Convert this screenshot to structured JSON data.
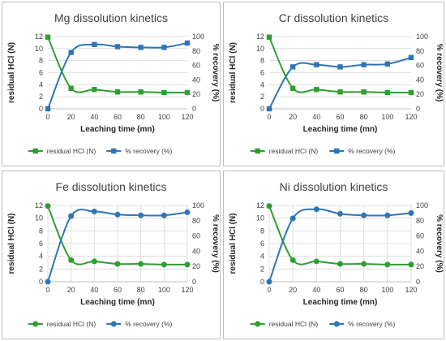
{
  "chart_data": [
    {
      "type": "line",
      "title": "Mg dissolution kinetics",
      "xlabel": "Leaching time (mn)",
      "ylabel": "residual HCl (N)",
      "y2label": "% recovery (%)",
      "x": [
        0,
        20,
        40,
        60,
        80,
        100,
        120
      ],
      "xlim": [
        0,
        120
      ],
      "ylim": [
        0,
        12
      ],
      "y2lim": [
        0,
        100
      ],
      "marker": "square",
      "series": [
        {
          "name": "residual HCl (N)",
          "axis": "left",
          "color": "#2e9e2e",
          "values": [
            11.9,
            3.4,
            3.2,
            2.8,
            2.8,
            2.7,
            2.7
          ]
        },
        {
          "name": "% recovery (%)",
          "axis": "right",
          "color": "#2e75b6",
          "values": [
            0,
            78,
            89,
            86,
            85,
            85,
            91
          ]
        }
      ],
      "legend": "bottom",
      "grid": "horizontal"
    },
    {
      "type": "line",
      "title": "Cr dissolution kinetics",
      "xlabel": "Leaching time (mn)",
      "ylabel": "residual HCl (N)",
      "y2label": "% recovery (%)",
      "x": [
        0,
        20,
        40,
        60,
        80,
        100,
        120
      ],
      "xlim": [
        0,
        120
      ],
      "ylim": [
        0,
        12
      ],
      "y2lim": [
        0,
        100
      ],
      "marker": "square",
      "series": [
        {
          "name": "residual HCl (N)",
          "axis": "left",
          "color": "#2e9e2e",
          "values": [
            11.9,
            3.4,
            3.2,
            2.8,
            2.8,
            2.7,
            2.7
          ]
        },
        {
          "name": "% recovery (%)",
          "axis": "right",
          "color": "#2e75b6",
          "values": [
            0,
            58,
            61,
            58,
            61,
            62,
            71
          ]
        }
      ],
      "legend": "bottom",
      "grid": "horizontal"
    },
    {
      "type": "line",
      "title": "Fe dissolution kinetics",
      "xlabel": "Leaching time (mn)",
      "ylabel": "residual HCl (N)",
      "y2label": "% recovery (%)",
      "x": [
        0,
        20,
        40,
        60,
        80,
        100,
        120
      ],
      "xlim": [
        0,
        120
      ],
      "ylim": [
        0,
        12
      ],
      "y2lim": [
        0,
        100
      ],
      "marker": "circle",
      "series": [
        {
          "name": "residual HCl (N)",
          "axis": "left",
          "color": "#2e9e2e",
          "values": [
            11.9,
            3.4,
            3.2,
            2.8,
            2.8,
            2.7,
            2.7
          ]
        },
        {
          "name": "% recovery (%)",
          "axis": "right",
          "color": "#2e75b6",
          "values": [
            0,
            86,
            92,
            88,
            87,
            87,
            91
          ]
        }
      ],
      "legend": "bottom",
      "grid": "full"
    },
    {
      "type": "line",
      "title": "Ni dissolution kinetics",
      "xlabel": "Leaching time (mn)",
      "ylabel": "residual HCl (N)",
      "y2label": "% recovery (%)",
      "x": [
        0,
        20,
        40,
        60,
        80,
        100,
        120
      ],
      "xlim": [
        0,
        120
      ],
      "ylim": [
        0,
        12
      ],
      "y2lim": [
        0,
        100
      ],
      "marker": "circle",
      "series": [
        {
          "name": "residual HCl (N)",
          "axis": "left",
          "color": "#2e9e2e",
          "values": [
            11.9,
            3.4,
            3.2,
            2.8,
            2.8,
            2.7,
            2.7
          ]
        },
        {
          "name": "% recovery (%)",
          "axis": "right",
          "color": "#2e75b6",
          "values": [
            0,
            83,
            95,
            89,
            87,
            87,
            90
          ]
        }
      ],
      "legend": "bottom",
      "grid": "full"
    }
  ]
}
